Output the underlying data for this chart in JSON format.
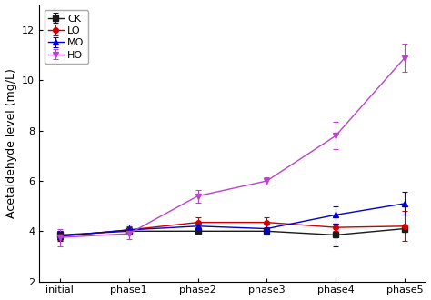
{
  "x_labels": [
    "initial",
    "phase1",
    "phase2",
    "phase3",
    "phase4",
    "phase5"
  ],
  "x": [
    0,
    1,
    2,
    3,
    4,
    5
  ],
  "series_order": [
    "CK",
    "LO",
    "MO",
    "HO"
  ],
  "series": {
    "CK": {
      "y": [
        3.85,
        4.0,
        4.0,
        4.0,
        3.85,
        4.1
      ],
      "yerr": [
        0.15,
        0.15,
        0.1,
        0.1,
        0.45,
        0.1
      ],
      "color": "#1a1a1a",
      "marker": "s",
      "markersize": 4,
      "linewidth": 1.0
    },
    "LO": {
      "y": [
        3.8,
        4.05,
        4.35,
        4.35,
        4.15,
        4.2
      ],
      "yerr": [
        0.15,
        0.15,
        0.2,
        0.2,
        0.15,
        0.6
      ],
      "color": "#cc0000",
      "marker": "o",
      "markersize": 4,
      "linewidth": 1.0
    },
    "MO": {
      "y": [
        3.8,
        4.05,
        4.2,
        4.1,
        4.65,
        5.1
      ],
      "yerr": [
        0.2,
        0.2,
        0.15,
        0.25,
        0.35,
        0.45
      ],
      "color": "#0000cc",
      "marker": "^",
      "markersize": 5,
      "linewidth": 1.0
    },
    "HO": {
      "y": [
        3.75,
        3.9,
        5.4,
        6.0,
        7.8,
        10.9
      ],
      "yerr": [
        0.35,
        0.2,
        0.25,
        0.15,
        0.55,
        0.55
      ],
      "color": "#bb44cc",
      "marker": "v",
      "markersize": 5,
      "linewidth": 1.0
    }
  },
  "ylabel": "Acetaldehyde level (mg/L)",
  "ylim": [
    2,
    13
  ],
  "yticks": [
    2,
    4,
    6,
    8,
    10,
    12
  ],
  "legend_fontsize": 8,
  "axis_fontsize": 9,
  "tick_fontsize": 8,
  "background_color": "#ffffff",
  "figure_width": 4.74,
  "figure_height": 3.3,
  "dpi": 100
}
